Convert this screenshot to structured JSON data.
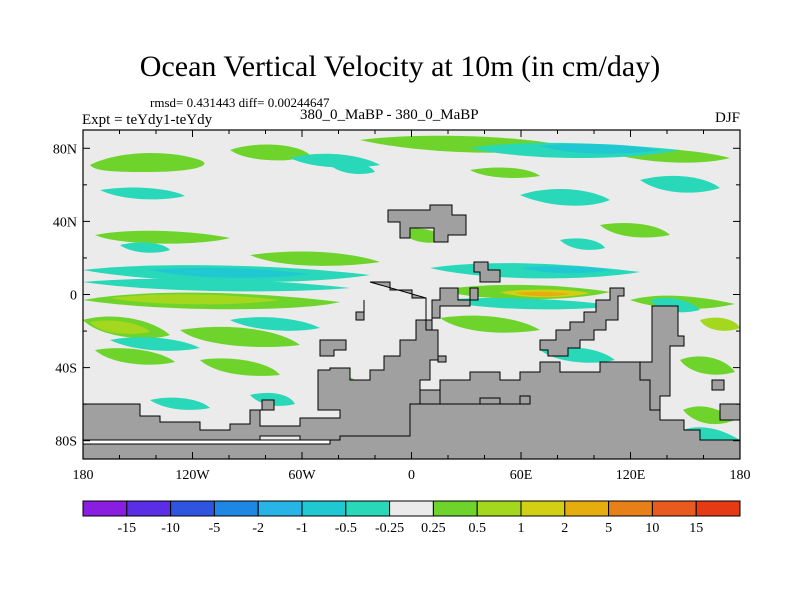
{
  "chart_data": {
    "type": "heatmap",
    "title": "Ocean Vertical Velocity at 10m (in cm/day)",
    "stats_text": "rmsd= 0.431443 diff= 0.00244647",
    "left_label": "Expt = teYdy1-teYdy",
    "center_label": "380_0_MaBP - 380_0_MaBP",
    "right_label": "DJF",
    "x_ticks": [
      {
        "value": -180,
        "label": "180"
      },
      {
        "value": -120,
        "label": "120W"
      },
      {
        "value": -60,
        "label": "60W"
      },
      {
        "value": 0,
        "label": "0"
      },
      {
        "value": 60,
        "label": "60E"
      },
      {
        "value": 120,
        "label": "120E"
      },
      {
        "value": 180,
        "label": "180"
      }
    ],
    "y_ticks": [
      {
        "value": 80,
        "label": "80N"
      },
      {
        "value": 40,
        "label": "40N"
      },
      {
        "value": 0,
        "label": "0"
      },
      {
        "value": -40,
        "label": "40S"
      },
      {
        "value": -80,
        "label": "80S"
      }
    ],
    "xlim": [
      -180,
      180
    ],
    "ylim": [
      -90,
      90
    ],
    "colorbar": {
      "labels": [
        "-15",
        "-10",
        "-5",
        "-2",
        "-1",
        "-0.5",
        "-0.25",
        "0.25",
        "0.5",
        "1",
        "2",
        "5",
        "10",
        "15"
      ],
      "colors": [
        "#8a1ee0",
        "#5a2ee6",
        "#2f55e0",
        "#1e86e3",
        "#28b4e6",
        "#20c8d2",
        "#28d8b8",
        "#ebebeb",
        "#6ed42c",
        "#a4d81e",
        "#d2cf14",
        "#e6ad0e",
        "#e8801a",
        "#e85a1e",
        "#e63a14"
      ]
    },
    "colors": {
      "land": "#a0a0a0",
      "background": "#ebebeb"
    }
  }
}
